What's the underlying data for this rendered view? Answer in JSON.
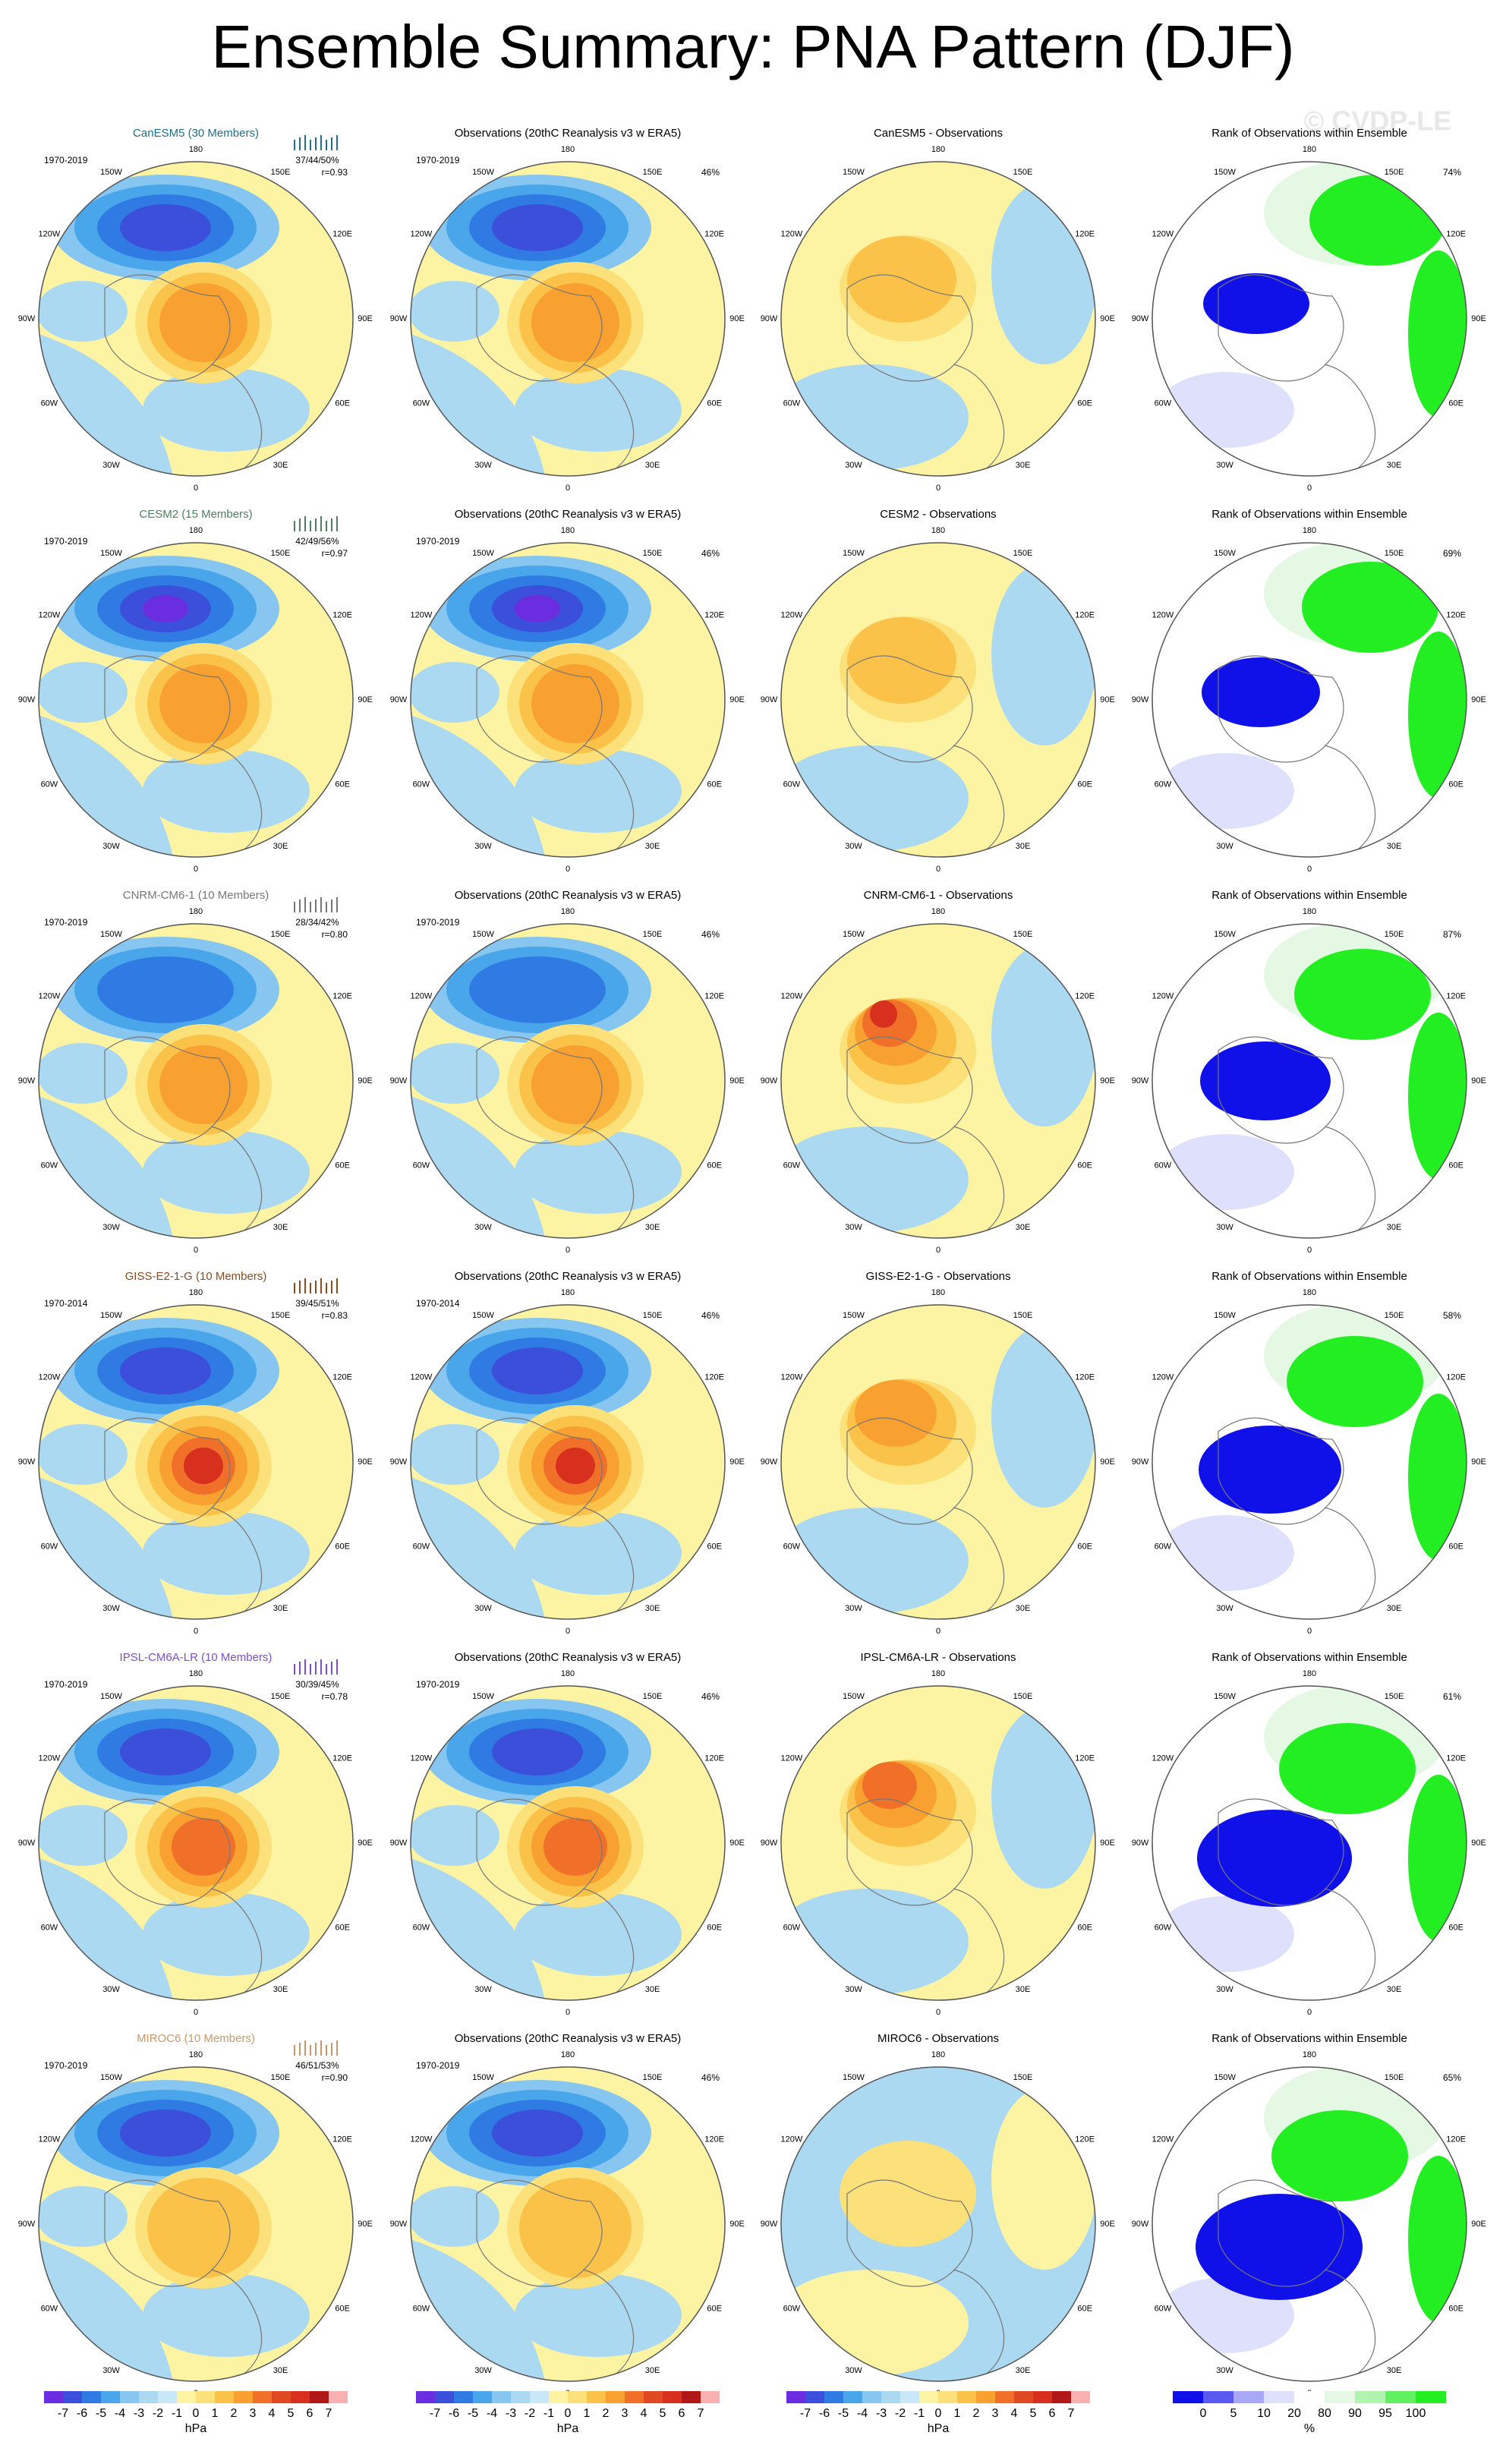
{
  "title": "Ensemble Summary: PNA Pattern (DJF)",
  "watermark": "© CVDP-LE",
  "longitude_labels": [
    "180",
    "150E",
    "120E",
    "90E",
    "60E",
    "30E",
    "0",
    "30W",
    "60W",
    "90W",
    "120W",
    "150W"
  ],
  "rows": [
    {
      "model_title": "CanESM5 (30 Members)",
      "model_color": "#1f6f8b",
      "period": "1970-2019",
      "stats": "37/44/50%",
      "r": "r=0.93",
      "obs_title": "Observations (20thC Reanalysis v3 w ERA5)",
      "obs_period": "1970-2019",
      "obs_pct": "46%",
      "diff_title": "CanESM5 - Observations",
      "rank_title": "Rank of Observations within Ensemble",
      "rank_pct": "74%"
    },
    {
      "model_title": "CESM2 (15 Members)",
      "model_color": "#4f7f5f",
      "period": "1970-2019",
      "stats": "42/49/56%",
      "r": "r=0.97",
      "obs_title": "Observations (20thC Reanalysis v3 w ERA5)",
      "obs_period": "1970-2019",
      "obs_pct": "46%",
      "diff_title": "CESM2 - Observations",
      "rank_title": "Rank of Observations within Ensemble",
      "rank_pct": "69%"
    },
    {
      "model_title": "CNRM-CM6-1 (10 Members)",
      "model_color": "#777777",
      "period": "1970-2019",
      "stats": "28/34/42%",
      "r": "r=0.80",
      "obs_title": "Observations (20thC Reanalysis v3 w ERA5)",
      "obs_period": "1970-2019",
      "obs_pct": "46%",
      "diff_title": "CNRM-CM6-1 - Observations",
      "rank_title": "Rank of Observations within Ensemble",
      "rank_pct": "87%"
    },
    {
      "model_title": "GISS-E2-1-G (10 Members)",
      "model_color": "#8b4a1f",
      "period": "1970-2014",
      "stats": "39/45/51%",
      "r": "r=0.83",
      "obs_title": "Observations (20thC Reanalysis v3 w ERA5)",
      "obs_period": "1970-2014",
      "obs_pct": "46%",
      "diff_title": "GISS-E2-1-G - Observations",
      "rank_title": "Rank of Observations within Ensemble",
      "rank_pct": "58%"
    },
    {
      "model_title": "IPSL-CM6A-LR (10 Members)",
      "model_color": "#7b4fc8",
      "period": "1970-2019",
      "stats": "30/39/45%",
      "r": "r=0.78",
      "obs_title": "Observations (20thC Reanalysis v3 w ERA5)",
      "obs_period": "1970-2019",
      "obs_pct": "46%",
      "diff_title": "IPSL-CM6A-LR - Observations",
      "rank_title": "Rank of Observations within Ensemble",
      "rank_pct": "61%"
    },
    {
      "model_title": "MIROC6 (10 Members)",
      "model_color": "#c8986a",
      "period": "1970-2019",
      "stats": "46/51/53%",
      "r": "r=0.90",
      "obs_title": "Observations (20thC Reanalysis v3 w ERA5)",
      "obs_period": "1970-2019",
      "obs_pct": "46%",
      "diff_title": "MIROC6 - Observations",
      "rank_title": "Rank of Observations within Ensemble",
      "rank_pct": "65%"
    }
  ],
  "colorbar": {
    "labels": [
      "-7",
      "-6",
      "-5",
      "-4",
      "-3",
      "-2",
      "-1",
      "0",
      "1",
      "2",
      "3",
      "4",
      "5",
      "6",
      "7"
    ],
    "unit": "hPa"
  },
  "rank_colorbar": {
    "labels": [
      "0",
      "5",
      "10",
      "20",
      "80",
      "90",
      "95",
      "100"
    ],
    "unit": "%"
  }
}
